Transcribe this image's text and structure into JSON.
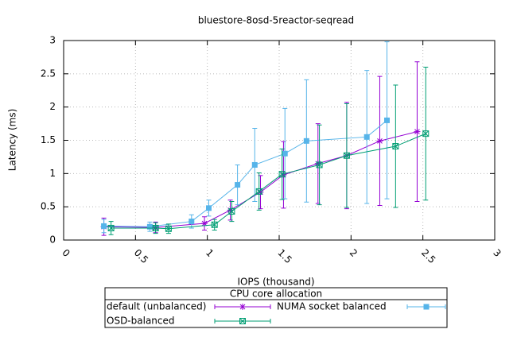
{
  "chart_data": {
    "type": "line",
    "title": "bluestore-8osd-5reactor-seqread",
    "x_label": "IOPS (thousand)",
    "y_label": "Latency (ms)",
    "xlim": [
      0,
      3
    ],
    "xticks": [
      0,
      0.5,
      1,
      1.5,
      2,
      2.5,
      3
    ],
    "ylim": [
      0,
      3
    ],
    "yticks": [
      0,
      0.5,
      1,
      1.5,
      2,
      2.5,
      3
    ],
    "grid": true,
    "legend_title": "CPU core allocation",
    "legend_position": "bottom",
    "series": [
      {
        "name": "default (unbalanced)",
        "color": "#9400d3",
        "marker": "star",
        "x": [
          0.28,
          0.64,
          0.98,
          1.16,
          1.37,
          1.53,
          1.77,
          1.97,
          2.2,
          2.46
        ],
        "values": [
          0.2,
          0.19,
          0.25,
          0.45,
          0.72,
          0.98,
          1.15,
          1.27,
          1.49,
          1.63
        ],
        "errors": [
          0.13,
          0.08,
          0.1,
          0.15,
          0.25,
          0.5,
          0.6,
          0.8,
          0.97,
          1.05
        ]
      },
      {
        "name": "NUMA socket balanced",
        "color": "#56b4e9",
        "marker": "square",
        "x": [
          0.28,
          0.6,
          0.89,
          1.01,
          1.21,
          1.33,
          1.54,
          1.69,
          2.11,
          2.25
        ],
        "values": [
          0.21,
          0.2,
          0.28,
          0.48,
          0.83,
          1.13,
          1.3,
          1.49,
          1.55,
          1.8
        ],
        "errors": [
          0.1,
          0.07,
          0.1,
          0.12,
          0.3,
          0.55,
          0.68,
          0.92,
          1.0,
          1.18
        ]
      },
      {
        "name": "OSD-balanced",
        "color": "#009e73",
        "marker": "boxx",
        "x": [
          0.33,
          0.64,
          0.73,
          1.05,
          1.17,
          1.36,
          1.52,
          1.78,
          1.97,
          2.31,
          2.52
        ],
        "values": [
          0.18,
          0.18,
          0.17,
          0.23,
          0.43,
          0.73,
          0.99,
          1.13,
          1.27,
          1.41,
          1.6
        ],
        "errors": [
          0.1,
          0.08,
          0.07,
          0.08,
          0.15,
          0.28,
          0.38,
          0.6,
          0.78,
          0.92,
          1.0
        ]
      }
    ]
  }
}
